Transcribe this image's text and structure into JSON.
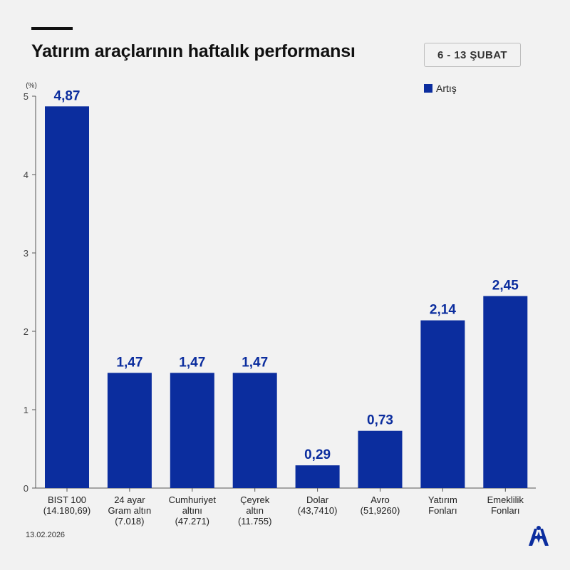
{
  "header": {
    "title": "Yatırım araçlarının haftalık performansı",
    "date_range": "6 - 13 ŞUBAT"
  },
  "footer": {
    "date": "13.02.2026",
    "logo_icon": "aa-logo-icon"
  },
  "colors": {
    "bar": "#0b2d9e",
    "label": "#0b2d9e",
    "axis": "#555555",
    "background": "#f2f2f2"
  },
  "chart_data": {
    "type": "bar",
    "unit_label": "(%)",
    "categories": [
      [
        "BIST 100",
        "(14.180,69)"
      ],
      [
        "24 ayar",
        "Gram altın",
        "(7.018)"
      ],
      [
        "Cumhuriyet",
        "altını",
        "(47.271)"
      ],
      [
        "Çeyrek",
        "altın",
        "(11.755)"
      ],
      [
        "Dolar",
        "(43,7410)"
      ],
      [
        "Avro",
        "(51,9260)"
      ],
      [
        "Yatırım",
        "Fonları"
      ],
      [
        "Emeklilik",
        "Fonları"
      ]
    ],
    "series": [
      {
        "name": "Artış",
        "values": [
          4.87,
          1.47,
          1.47,
          1.47,
          0.29,
          0.73,
          2.14,
          2.45
        ],
        "labels": [
          "4,87",
          "1,47",
          "1,47",
          "1,47",
          "0,29",
          "0,73",
          "2,14",
          "2,45"
        ]
      }
    ],
    "ylim": [
      0,
      5
    ],
    "yticks": [
      0,
      1,
      2,
      3,
      4,
      5
    ],
    "legend": "top-right",
    "grid": false
  }
}
